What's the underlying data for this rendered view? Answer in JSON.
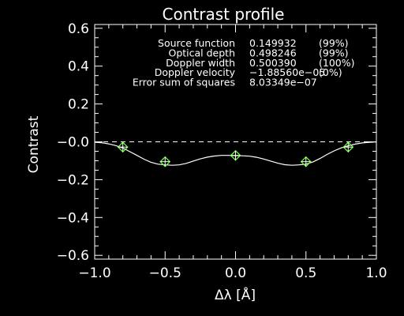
{
  "chart_data": {
    "type": "line",
    "title": "Contrast profile",
    "xlabel": "Δλ [Å]",
    "ylabel": "Contrast",
    "xlim": [
      -1.0,
      1.0
    ],
    "ylim": [
      -0.62,
      0.62
    ],
    "xticks": [
      -1.0,
      -0.5,
      0.0,
      0.5,
      1.0
    ],
    "xtick_labels": [
      "−1.0",
      "−0.5",
      "0.0",
      "0.5",
      "1.0"
    ],
    "yticks": [
      0.6,
      0.4,
      0.2,
      -0.0,
      -0.2,
      -0.4,
      -0.6
    ],
    "ytick_labels": [
      "0.6",
      "0.4",
      "0.2",
      "−0.0",
      "−0.2",
      "−0.4",
      "−0.6"
    ],
    "zero_line": {
      "y": 0.0,
      "style": "dashed"
    },
    "series": [
      {
        "kind": "fit-curve",
        "color": "#ffffff",
        "x": [
          -1.0,
          -0.95,
          -0.9,
          -0.85,
          -0.8,
          -0.75,
          -0.7,
          -0.65,
          -0.6,
          -0.55,
          -0.5,
          -0.45,
          -0.4,
          -0.35,
          -0.3,
          -0.25,
          -0.2,
          -0.15,
          -0.1,
          -0.05,
          0.0,
          0.05,
          0.1,
          0.15,
          0.2,
          0.25,
          0.3,
          0.35,
          0.4,
          0.45,
          0.5,
          0.55,
          0.6,
          0.65,
          0.7,
          0.75,
          0.8,
          0.85,
          0.9,
          0.95,
          1.0
        ],
        "y": [
          -0.002,
          -0.005,
          -0.011,
          -0.02,
          -0.033,
          -0.052,
          -0.072,
          -0.092,
          -0.108,
          -0.118,
          -0.122,
          -0.124,
          -0.122,
          -0.114,
          -0.102,
          -0.09,
          -0.081,
          -0.075,
          -0.072,
          -0.072,
          -0.073,
          -0.074,
          -0.076,
          -0.082,
          -0.091,
          -0.102,
          -0.113,
          -0.121,
          -0.124,
          -0.122,
          -0.118,
          -0.106,
          -0.088,
          -0.067,
          -0.048,
          -0.032,
          -0.021,
          -0.012,
          -0.006,
          -0.003,
          -0.001
        ]
      },
      {
        "kind": "observed-points",
        "color": "#66ff33",
        "marker": "diamond-plus",
        "x": [
          -0.8,
          -0.5,
          0.0,
          0.5,
          0.8
        ],
        "y": [
          -0.028,
          -0.105,
          -0.072,
          -0.105,
          -0.028
        ]
      }
    ],
    "annotations": [
      {
        "label": "Source function",
        "value": "0.149932",
        "pct": "(99%)"
      },
      {
        "label": "Optical depth",
        "value": "0.498246",
        "pct": "(99%)"
      },
      {
        "label": "Doppler width",
        "value": "0.500390",
        "pct": "(100%)"
      },
      {
        "label": "Doppler velocity",
        "value": "−1.88560e−05",
        "pct": "(0%)"
      },
      {
        "label": "Error sum of squares",
        "value": "8.03349e−07",
        "pct": ""
      }
    ]
  }
}
